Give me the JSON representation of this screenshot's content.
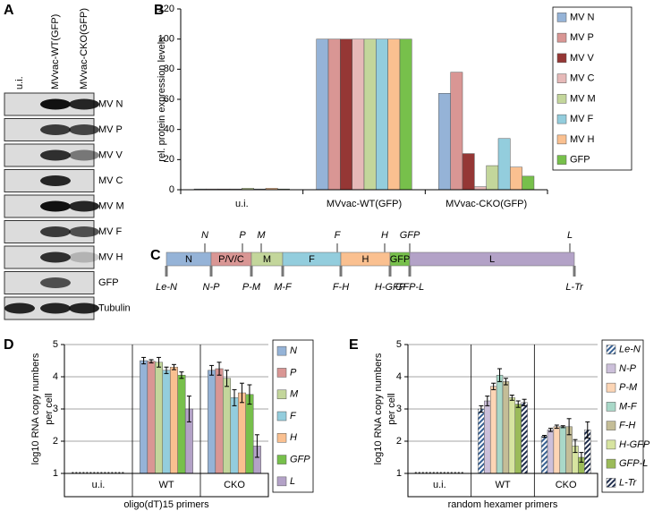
{
  "panel_labels": [
    "A",
    "B",
    "C",
    "D",
    "E"
  ],
  "blot": {
    "lanes": [
      "u.i.",
      "MVvac-WT(GFP)",
      "MVvac-CKO(GFP)"
    ],
    "rows": [
      "MV N",
      "MV P",
      "MV V",
      "MV C",
      "MV M",
      "MV F",
      "MV H",
      "GFP",
      "Tubulin"
    ]
  },
  "genome": {
    "segments": [
      "N",
      "P/V/C",
      "M",
      "F",
      "H",
      "GFP",
      "L"
    ],
    "segment_colors": [
      "#95b3d7",
      "#d99694",
      "#c3d69b",
      "#93cddd",
      "#fac090",
      "#77c04b",
      "#b3a2c7"
    ],
    "genes": [
      "N",
      "P",
      "M",
      "F",
      "H",
      "GFP",
      "L"
    ],
    "junctions": [
      "Le-N",
      "N-P",
      "P-M",
      "M-F",
      "F-H",
      "H-GFP",
      "GFP-L",
      "L-Tr"
    ]
  },
  "chart_data": [
    {
      "type": "bar",
      "ylabel": [
        "rel. protein expression levels"
      ],
      "categories": [
        "u.i.",
        "MVvac-WT(GFP)",
        "MVvac-CKO(GFP)"
      ],
      "ylim": [
        0,
        120
      ],
      "yticks": [
        0,
        20,
        40,
        60,
        80,
        100,
        120
      ],
      "grid": false,
      "legend": "right",
      "series": [
        {
          "name": "MV N",
          "color": "#95b3d7",
          "values": [
            0.5,
            100,
            64
          ]
        },
        {
          "name": "MV P",
          "color": "#d99694",
          "values": [
            0.5,
            100,
            78
          ]
        },
        {
          "name": "MV V",
          "color": "#953735",
          "values": [
            0.5,
            100,
            24
          ]
        },
        {
          "name": "MV C",
          "color": "#e6b9b8",
          "values": [
            0.5,
            100,
            2
          ]
        },
        {
          "name": "MV M",
          "color": "#c3d69b",
          "values": [
            1,
            100,
            16
          ]
        },
        {
          "name": "MV F",
          "color": "#93cddd",
          "values": [
            0.5,
            100,
            34
          ]
        },
        {
          "name": "MV H",
          "color": "#fac090",
          "values": [
            1,
            100,
            15
          ]
        },
        {
          "name": "GFP",
          "color": "#77c04b",
          "values": [
            0.5,
            100,
            9
          ]
        }
      ]
    },
    {
      "type": "bar",
      "ylabel": [
        "log10 RNA copy numbers",
        "per cell"
      ],
      "xlabel": "oligo(dT)15 primers",
      "categories": [
        "u.i.",
        "WT",
        "CKO"
      ],
      "category_box": true,
      "legend_style": "italic",
      "ylim": [
        1,
        5
      ],
      "yticks": [
        1,
        2,
        3,
        4,
        5
      ],
      "grid": true,
      "legend": "right",
      "series": [
        {
          "name": "N",
          "color": "#95b3d7",
          "values": [
            null,
            4.5,
            4.2
          ],
          "errors": [
            null,
            0.1,
            0.15
          ]
        },
        {
          "name": "P",
          "color": "#d99694",
          "values": [
            null,
            4.48,
            4.25
          ],
          "errors": [
            null,
            0.05,
            0.2
          ]
        },
        {
          "name": "M",
          "color": "#c3d69b",
          "values": [
            null,
            4.45,
            3.95
          ],
          "errors": [
            null,
            0.15,
            0.25
          ]
        },
        {
          "name": "F",
          "color": "#93cddd",
          "values": [
            null,
            4.2,
            3.35
          ],
          "errors": [
            null,
            0.1,
            0.25
          ]
        },
        {
          "name": "H",
          "color": "#fac090",
          "values": [
            null,
            4.3,
            3.5
          ],
          "errors": [
            null,
            0.08,
            0.3
          ]
        },
        {
          "name": "GFP",
          "color": "#77c04b",
          "values": [
            null,
            4.05,
            3.45
          ],
          "errors": [
            null,
            0.1,
            0.3
          ]
        },
        {
          "name": "L",
          "color": "#b3a2c7",
          "values": [
            null,
            3.0,
            1.85
          ],
          "errors": [
            null,
            0.4,
            0.35
          ]
        }
      ]
    },
    {
      "type": "bar",
      "ylabel": [
        "log10 RNA copy numbers",
        "per cell"
      ],
      "xlabel": "random hexamer primers",
      "categories": [
        "u.i.",
        "WT",
        "CKO"
      ],
      "category_box": true,
      "legend_style": "italic",
      "ylim": [
        1,
        5
      ],
      "yticks": [
        1,
        2,
        3,
        4,
        5
      ],
      "grid": true,
      "legend": "right",
      "series": [
        {
          "name": "Le-N",
          "color": "#376092",
          "hatch": true,
          "values": [
            null,
            3.0,
            2.15
          ],
          "errors": [
            null,
            0.1,
            0.03
          ]
        },
        {
          "name": "N-P",
          "color": "#ccc0da",
          "values": [
            null,
            3.25,
            2.35
          ],
          "errors": [
            null,
            0.15,
            0.05
          ]
        },
        {
          "name": "P-M",
          "color": "#fcd5b5",
          "values": [
            null,
            3.7,
            2.45
          ],
          "errors": [
            null,
            0.1,
            0.05
          ]
        },
        {
          "name": "M-F",
          "color": "#a9d8c8",
          "values": [
            null,
            4.05,
            2.45
          ],
          "errors": [
            null,
            0.2,
            0.03
          ]
        },
        {
          "name": "F-H",
          "color": "#c4bd97",
          "values": [
            null,
            3.85,
            2.45
          ],
          "errors": [
            null,
            0.1,
            0.25
          ]
        },
        {
          "name": "H-GFP",
          "color": "#d7e4a0",
          "values": [
            null,
            3.35,
            1.85
          ],
          "errors": [
            null,
            0.08,
            0.2
          ]
        },
        {
          "name": "GFP-L",
          "color": "#9bbb59",
          "values": [
            null,
            3.15,
            1.5
          ],
          "errors": [
            null,
            0.1,
            0.15
          ]
        },
        {
          "name": "L-Tr",
          "color": "#1f2d4d",
          "hatch": true,
          "values": [
            null,
            3.2,
            2.35
          ],
          "errors": [
            null,
            0.1,
            0.25
          ]
        }
      ]
    }
  ]
}
